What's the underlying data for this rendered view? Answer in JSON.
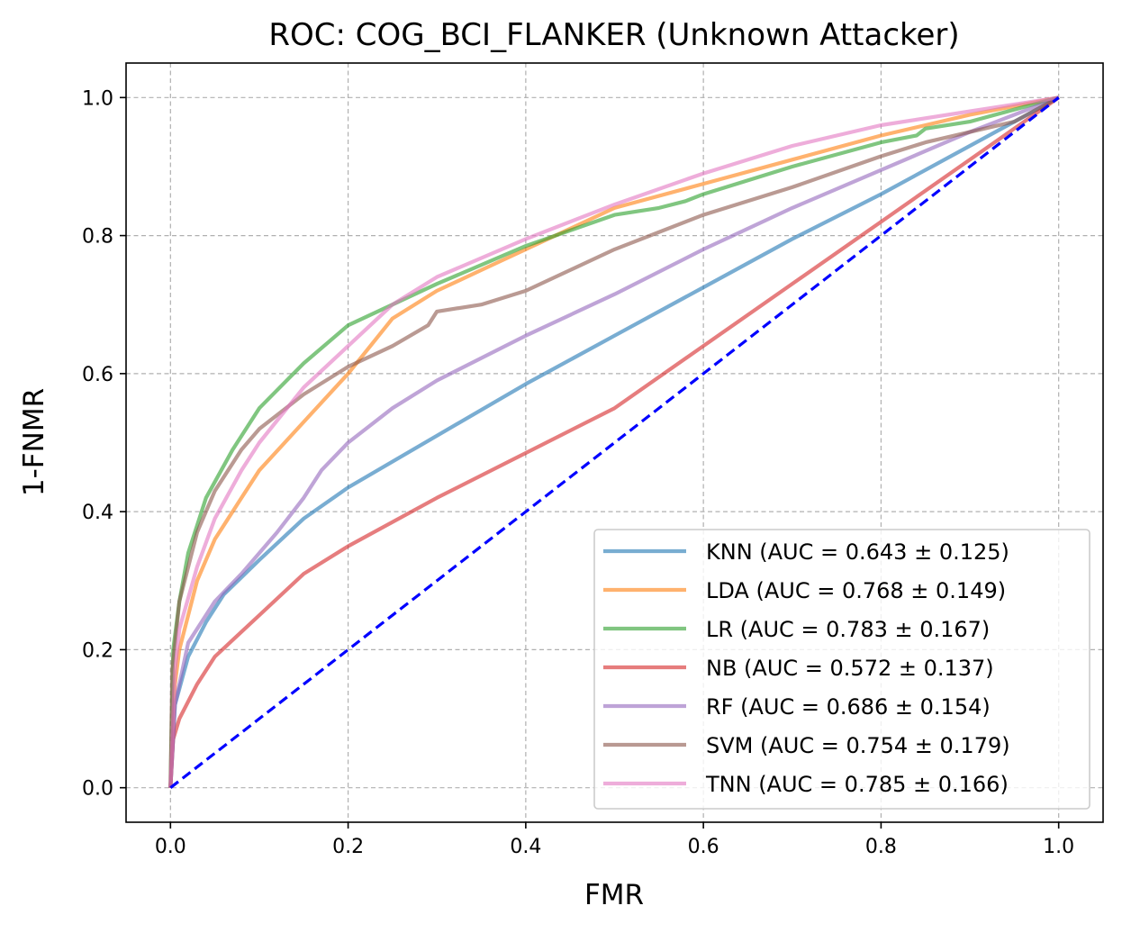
{
  "chart_data": {
    "type": "line",
    "title": "ROC: COG_BCI_FLANKER (Unknown Attacker)",
    "xlabel": "FMR",
    "ylabel": "1-FNMR",
    "xlim": [
      -0.05,
      1.05
    ],
    "ylim": [
      -0.05,
      1.05
    ],
    "x_ticks": [
      "0.0",
      "0.2",
      "0.4",
      "0.6",
      "0.8",
      "1.0"
    ],
    "y_ticks": [
      "0.0",
      "0.2",
      "0.4",
      "0.6",
      "0.8",
      "1.0"
    ],
    "grid": true,
    "legend_position": "lower right",
    "chance_line": {
      "x": [
        0,
        1
      ],
      "y": [
        0,
        1
      ],
      "color": "#0000ff",
      "style": "dashed"
    },
    "series": [
      {
        "name": "KNN (AUC = 0.643 ± 0.125)",
        "color": "#1f77b4",
        "x": [
          0,
          0.005,
          0.02,
          0.04,
          0.06,
          0.1,
          0.15,
          0.2,
          0.3,
          0.4,
          0.5,
          0.6,
          0.7,
          0.8,
          0.9,
          1.0
        ],
        "y": [
          0,
          0.12,
          0.19,
          0.24,
          0.28,
          0.33,
          0.39,
          0.435,
          0.51,
          0.585,
          0.655,
          0.725,
          0.795,
          0.86,
          0.93,
          1.0
        ]
      },
      {
        "name": "LDA (AUC = 0.768 ± 0.149)",
        "color": "#ff7f0e",
        "x": [
          0,
          0.005,
          0.01,
          0.03,
          0.05,
          0.08,
          0.1,
          0.15,
          0.2,
          0.25,
          0.3,
          0.35,
          0.4,
          0.45,
          0.5,
          0.6,
          0.7,
          0.8,
          0.9,
          1.0
        ],
        "y": [
          0,
          0.15,
          0.2,
          0.3,
          0.36,
          0.42,
          0.46,
          0.53,
          0.6,
          0.68,
          0.72,
          0.75,
          0.78,
          0.81,
          0.84,
          0.875,
          0.91,
          0.945,
          0.975,
          1.0
        ]
      },
      {
        "name": "LR (AUC = 0.783 ± 0.167)",
        "color": "#2ca02c",
        "x": [
          0,
          0.003,
          0.01,
          0.02,
          0.04,
          0.07,
          0.1,
          0.15,
          0.2,
          0.25,
          0.3,
          0.4,
          0.5,
          0.55,
          0.58,
          0.6,
          0.7,
          0.8,
          0.84,
          0.85,
          0.9,
          1.0
        ],
        "y": [
          0,
          0.2,
          0.27,
          0.34,
          0.42,
          0.49,
          0.55,
          0.615,
          0.67,
          0.7,
          0.73,
          0.785,
          0.83,
          0.84,
          0.85,
          0.86,
          0.9,
          0.935,
          0.945,
          0.955,
          0.965,
          1.0
        ]
      },
      {
        "name": "NB (AUC = 0.572 ± 0.137)",
        "color": "#d62728",
        "x": [
          0,
          0.003,
          0.01,
          0.03,
          0.05,
          0.1,
          0.15,
          0.2,
          0.3,
          0.4,
          0.5,
          0.6,
          0.7,
          0.8,
          0.9,
          1.0
        ],
        "y": [
          0,
          0.07,
          0.1,
          0.15,
          0.19,
          0.25,
          0.31,
          0.35,
          0.42,
          0.485,
          0.55,
          0.64,
          0.73,
          0.82,
          0.91,
          1.0
        ]
      },
      {
        "name": "RF (AUC = 0.686 ± 0.154)",
        "color": "#9467bd",
        "x": [
          0,
          0.005,
          0.02,
          0.05,
          0.08,
          0.12,
          0.15,
          0.17,
          0.2,
          0.25,
          0.3,
          0.4,
          0.5,
          0.6,
          0.7,
          0.8,
          0.9,
          1.0
        ],
        "y": [
          0,
          0.12,
          0.21,
          0.27,
          0.31,
          0.37,
          0.42,
          0.46,
          0.5,
          0.55,
          0.59,
          0.655,
          0.715,
          0.78,
          0.84,
          0.895,
          0.95,
          1.0
        ]
      },
      {
        "name": "SVM (AUC = 0.754 ± 0.179)",
        "color": "#8c564b",
        "x": [
          0,
          0.002,
          0.01,
          0.03,
          0.05,
          0.08,
          0.1,
          0.15,
          0.2,
          0.25,
          0.29,
          0.3,
          0.35,
          0.4,
          0.45,
          0.5,
          0.6,
          0.7,
          0.8,
          0.85,
          0.9,
          0.95,
          1.0
        ],
        "y": [
          0,
          0.17,
          0.27,
          0.37,
          0.43,
          0.49,
          0.52,
          0.57,
          0.61,
          0.64,
          0.67,
          0.69,
          0.7,
          0.72,
          0.75,
          0.78,
          0.83,
          0.87,
          0.915,
          0.935,
          0.95,
          0.965,
          1.0
        ]
      },
      {
        "name": "TNN (AUC = 0.785 ± 0.166)",
        "color": "#e377c2",
        "x": [
          0,
          0.005,
          0.01,
          0.03,
          0.05,
          0.08,
          0.1,
          0.15,
          0.2,
          0.25,
          0.3,
          0.4,
          0.5,
          0.6,
          0.7,
          0.8,
          0.9,
          1.0
        ],
        "y": [
          0,
          0.17,
          0.23,
          0.32,
          0.39,
          0.46,
          0.5,
          0.58,
          0.64,
          0.7,
          0.74,
          0.795,
          0.845,
          0.89,
          0.93,
          0.96,
          0.98,
          1.0
        ]
      }
    ]
  }
}
